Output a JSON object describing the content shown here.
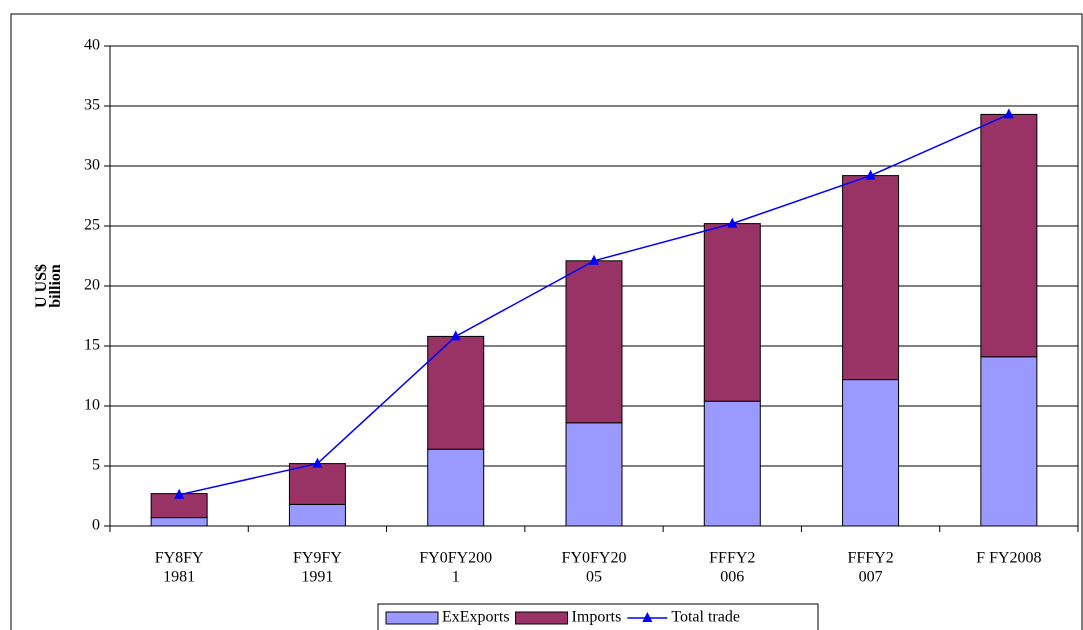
{
  "chart_data": {
    "type": "stacked-bar-line",
    "categories": [
      [
        "FY8FY",
        "1981"
      ],
      [
        "FY9FY",
        "1991"
      ],
      [
        "FY0FY200",
        "1"
      ],
      [
        "FY0FY20",
        "05"
      ],
      [
        "FFFY2",
        "006"
      ],
      [
        "FFFY2",
        "007"
      ],
      [
        "F FY2008"
      ]
    ],
    "ylabel": [
      "U US$",
      "billion"
    ],
    "series": [
      {
        "name": "ExExports",
        "color": "#9999ff",
        "kind": "bar",
        "values": [
          0.7,
          1.8,
          6.4,
          8.6,
          10.4,
          12.2,
          14.1
        ]
      },
      {
        "name": "Imports",
        "color": "#993366",
        "kind": "bar",
        "values": [
          2.0,
          3.4,
          9.4,
          13.5,
          14.8,
          17.0,
          20.2
        ]
      },
      {
        "name": "Total trade",
        "color": "#0000ff",
        "kind": "line",
        "values": [
          2.6,
          5.2,
          15.8,
          22.1,
          25.2,
          29.2,
          34.3
        ]
      }
    ],
    "ylim": [
      0,
      40
    ],
    "yticks": [
      0,
      5,
      10,
      15,
      20,
      25,
      30,
      35,
      40
    ],
    "grid": true
  }
}
